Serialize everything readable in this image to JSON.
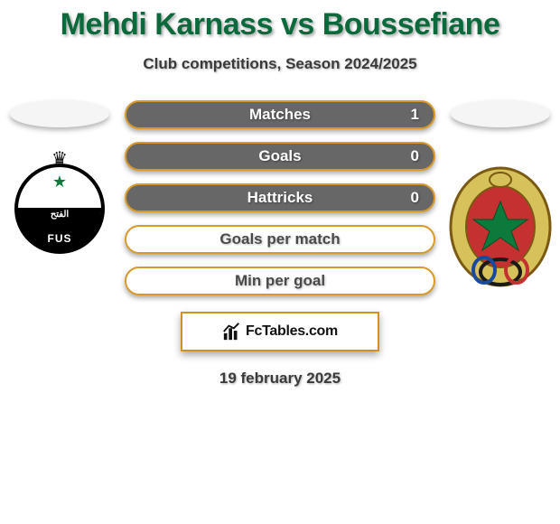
{
  "colors": {
    "title": "#0b6a3c",
    "subtitle": "#3a3a3a",
    "bg": "#ffffff",
    "stat_border": "#d79a2a",
    "stat_fill": "#676767",
    "stat_text_filled": "#ffffff",
    "stat_text_empty": "#4a4a4a",
    "brand_border": "#cf9226",
    "brand_text": "#121212",
    "date": "#3a3a3a",
    "ellipse": "#f5f5f5"
  },
  "typography": {
    "title_size": 34,
    "subtitle_size": 17,
    "stat_label_size": 17,
    "brand_size": 16,
    "date_size": 17
  },
  "title": "Mehdi Karnass vs Boussefiane",
  "subtitle": "Club competitions, Season 2024/2025",
  "left_team": {
    "abbrev": "FUS",
    "crest_semantics": "fus-rabat-crest"
  },
  "right_team": {
    "crest_semantics": "far-rabat-crest"
  },
  "stats": [
    {
      "label": "Matches",
      "value": "1",
      "filled": true
    },
    {
      "label": "Goals",
      "value": "0",
      "filled": true
    },
    {
      "label": "Hattricks",
      "value": "0",
      "filled": true
    },
    {
      "label": "Goals per match",
      "value": "",
      "filled": false
    },
    {
      "label": "Min per goal",
      "value": "",
      "filled": false
    }
  ],
  "brand": "FcTables.com",
  "date": "19 february 2025"
}
